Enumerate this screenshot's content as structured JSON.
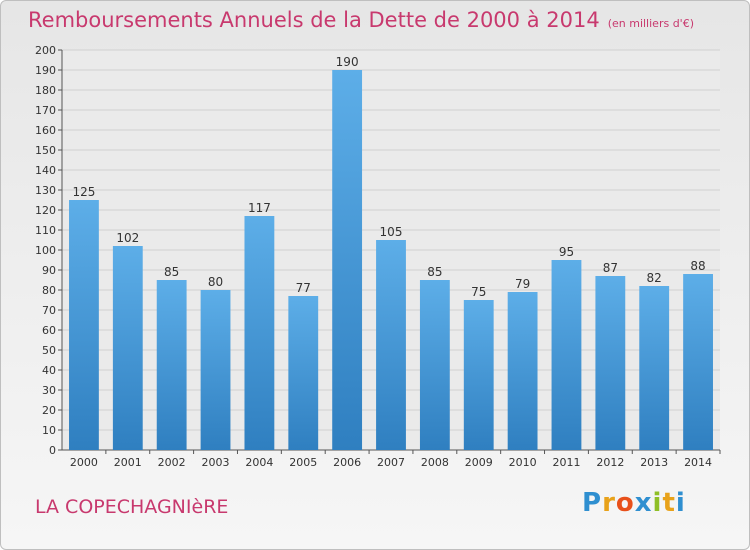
{
  "header": {
    "title": "Remboursements Annuels de la Dette de 2000 à 2014",
    "subtitle": "(en milliers d'€)"
  },
  "footer": {
    "commune": "LA COPECHAGNIèRE",
    "logo_text": "Proxiti"
  },
  "colors": {
    "title": "#c8396e",
    "bar_light": "#5daee8",
    "bar_dark": "#2f7fc0"
  },
  "chart_data": {
    "type": "bar",
    "title": "Remboursements Annuels de la Dette de 2000 à 2014",
    "subtitle": "(en milliers d'€)",
    "categories": [
      "2000",
      "2001",
      "2002",
      "2003",
      "2004",
      "2005",
      "2006",
      "2007",
      "2008",
      "2009",
      "2010",
      "2011",
      "2012",
      "2013",
      "2014"
    ],
    "values": [
      125,
      102,
      85,
      80,
      117,
      77,
      190,
      105,
      85,
      75,
      79,
      95,
      87,
      82,
      88
    ],
    "ylim": [
      0,
      200
    ],
    "ytick_step": 10,
    "grid": true,
    "data_labels": true
  }
}
